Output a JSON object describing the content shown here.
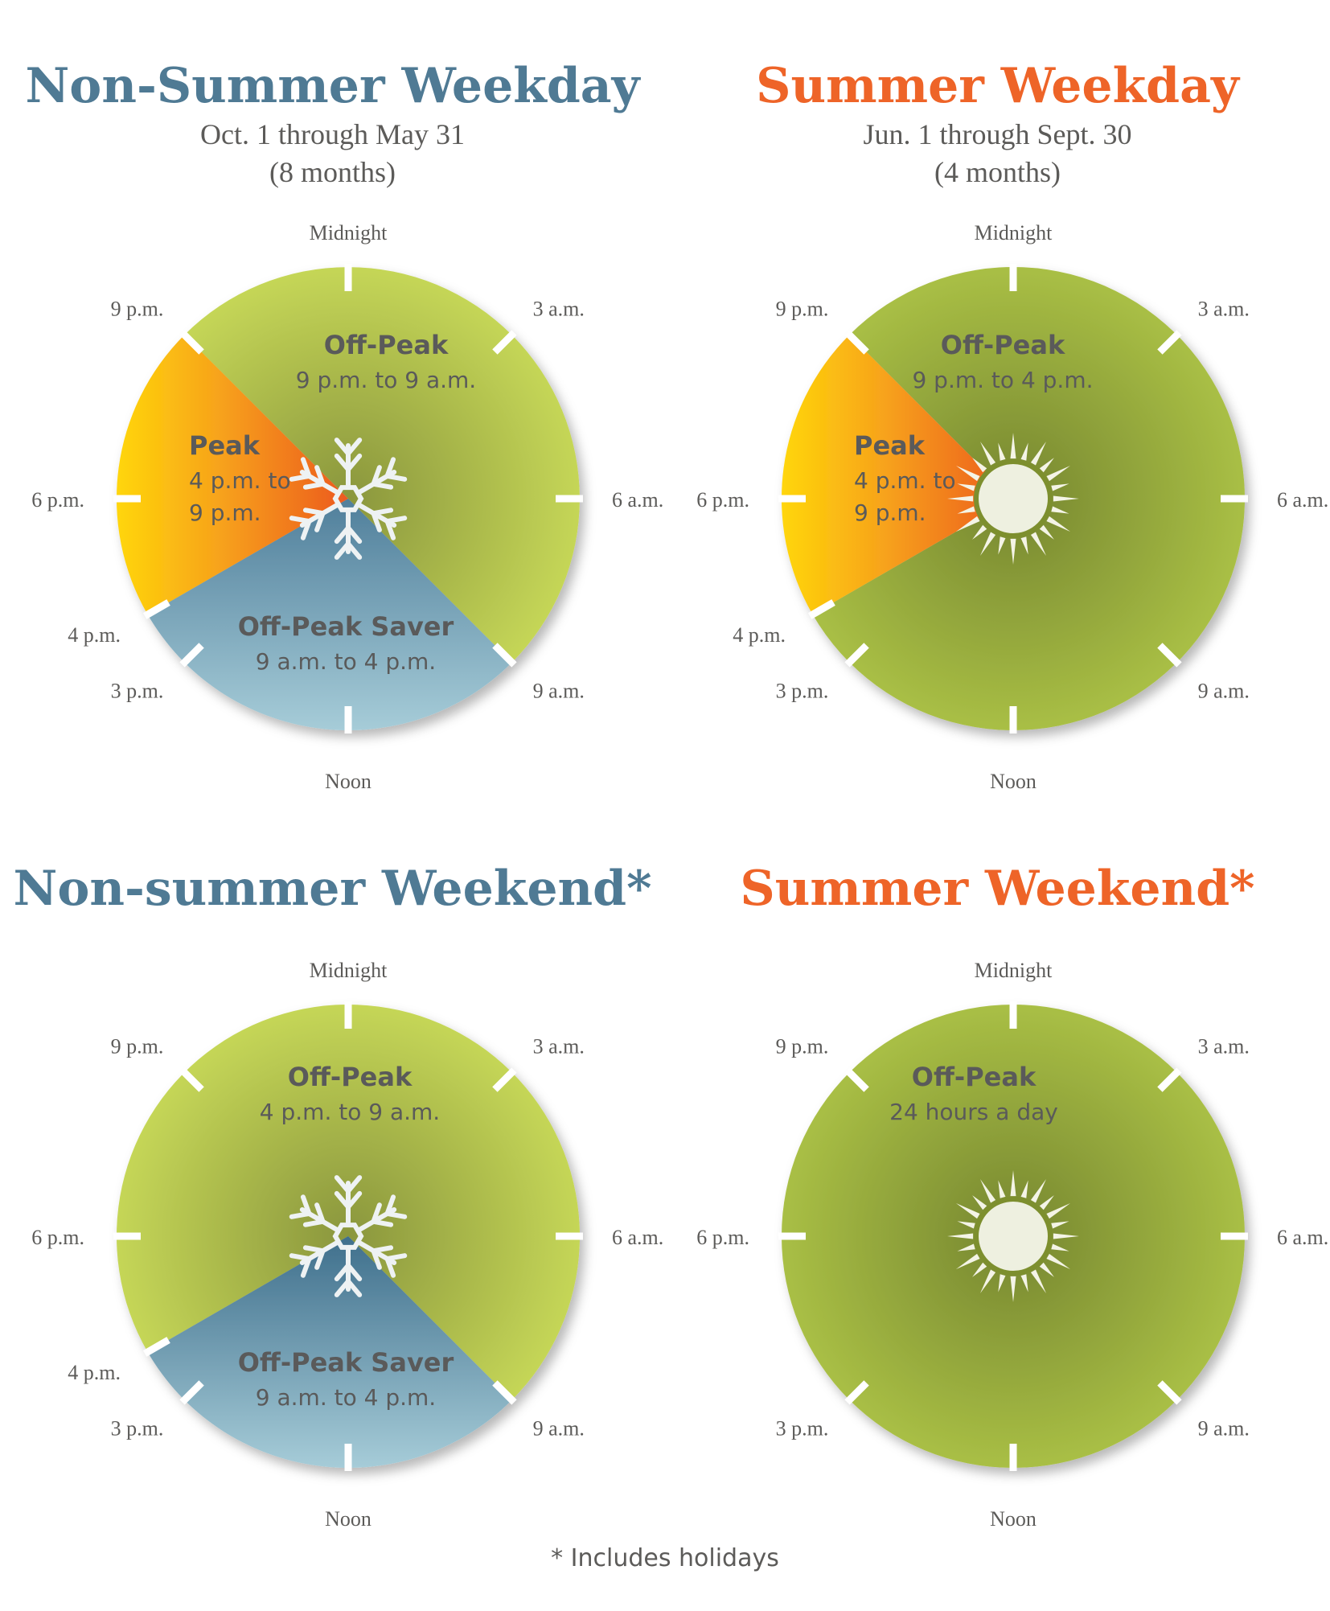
{
  "panels": [
    {
      "season": "winter",
      "title": "Non-Summer Weekday",
      "subtitle_line1": "Oct. 1 through May 31",
      "subtitle_line2": "(8 months)",
      "icon": "snowflake",
      "time_labels": [
        "Midnight",
        "3 a.m.",
        "6 a.m.",
        "9 a.m.",
        "Noon",
        "3 p.m.",
        "4 p.m.",
        "6 p.m.",
        "9 p.m."
      ],
      "segments": [
        {
          "name": "Off-Peak",
          "range": "9 p.m. to 9 a.m.",
          "start_hour": 21,
          "end_hour": 9,
          "color": "#c5d657"
        },
        {
          "name": "Off-Peak Saver",
          "range": "9 a.m. to 4 p.m.",
          "start_hour": 9,
          "end_hour": 16,
          "color": "#6a93aa"
        },
        {
          "name": "Peak",
          "range_line1": "4 p.m. to",
          "range_line2": "9 p.m.",
          "start_hour": 16,
          "end_hour": 21,
          "color": "#f59a1a"
        }
      ]
    },
    {
      "season": "summer",
      "title": "Summer Weekday",
      "subtitle_line1": "Jun. 1 through Sept. 30",
      "subtitle_line2": "(4 months)",
      "icon": "sun",
      "time_labels": [
        "Midnight",
        "3 a.m.",
        "6 a.m.",
        "9 a.m.",
        "Noon",
        "3 p.m.",
        "4 p.m.",
        "6 p.m.",
        "9 p.m."
      ],
      "segments": [
        {
          "name": "Off-Peak",
          "range": "9 p.m. to 4 p.m.",
          "start_hour": 21,
          "end_hour": 16,
          "color": "#a9bf45"
        },
        {
          "name": "Peak",
          "range_line1": "4 p.m. to",
          "range_line2": "9 p.m.",
          "start_hour": 16,
          "end_hour": 21,
          "color": "#f59a1a"
        }
      ]
    },
    {
      "season": "winter",
      "title": "Non-summer Weekend*",
      "icon": "snowflake",
      "time_labels": [
        "Midnight",
        "3 a.m.",
        "6 a.m.",
        "9 a.m.",
        "Noon",
        "3 p.m.",
        "4 p.m.",
        "6 p.m.",
        "9 p.m."
      ],
      "segments": [
        {
          "name": "Off-Peak",
          "range": "4 p.m. to 9 a.m.",
          "start_hour": 16,
          "end_hour": 9,
          "color": "#c5d657"
        },
        {
          "name": "Off-Peak Saver",
          "range": "9 a.m. to 4 p.m.",
          "start_hour": 9,
          "end_hour": 16,
          "color": "#587f99"
        }
      ]
    },
    {
      "season": "summer",
      "title": "Summer Weekend*",
      "icon": "sun",
      "time_labels": [
        "Midnight",
        "3 a.m.",
        "6 a.m.",
        "9 a.m.",
        "Noon",
        "3 p.m.",
        "6 p.m.",
        "9 p.m."
      ],
      "segments": [
        {
          "name": "Off-Peak",
          "range": "24 hours a day",
          "start_hour": 0,
          "end_hour": 24,
          "color": "#a9bf45"
        }
      ]
    }
  ],
  "footnote": "* Includes holidays",
  "colors": {
    "winter_title": "#4f7a94",
    "summer_title": "#ee6428",
    "label_text": "#5c5b59",
    "segment_label": "#5a5a5a"
  }
}
